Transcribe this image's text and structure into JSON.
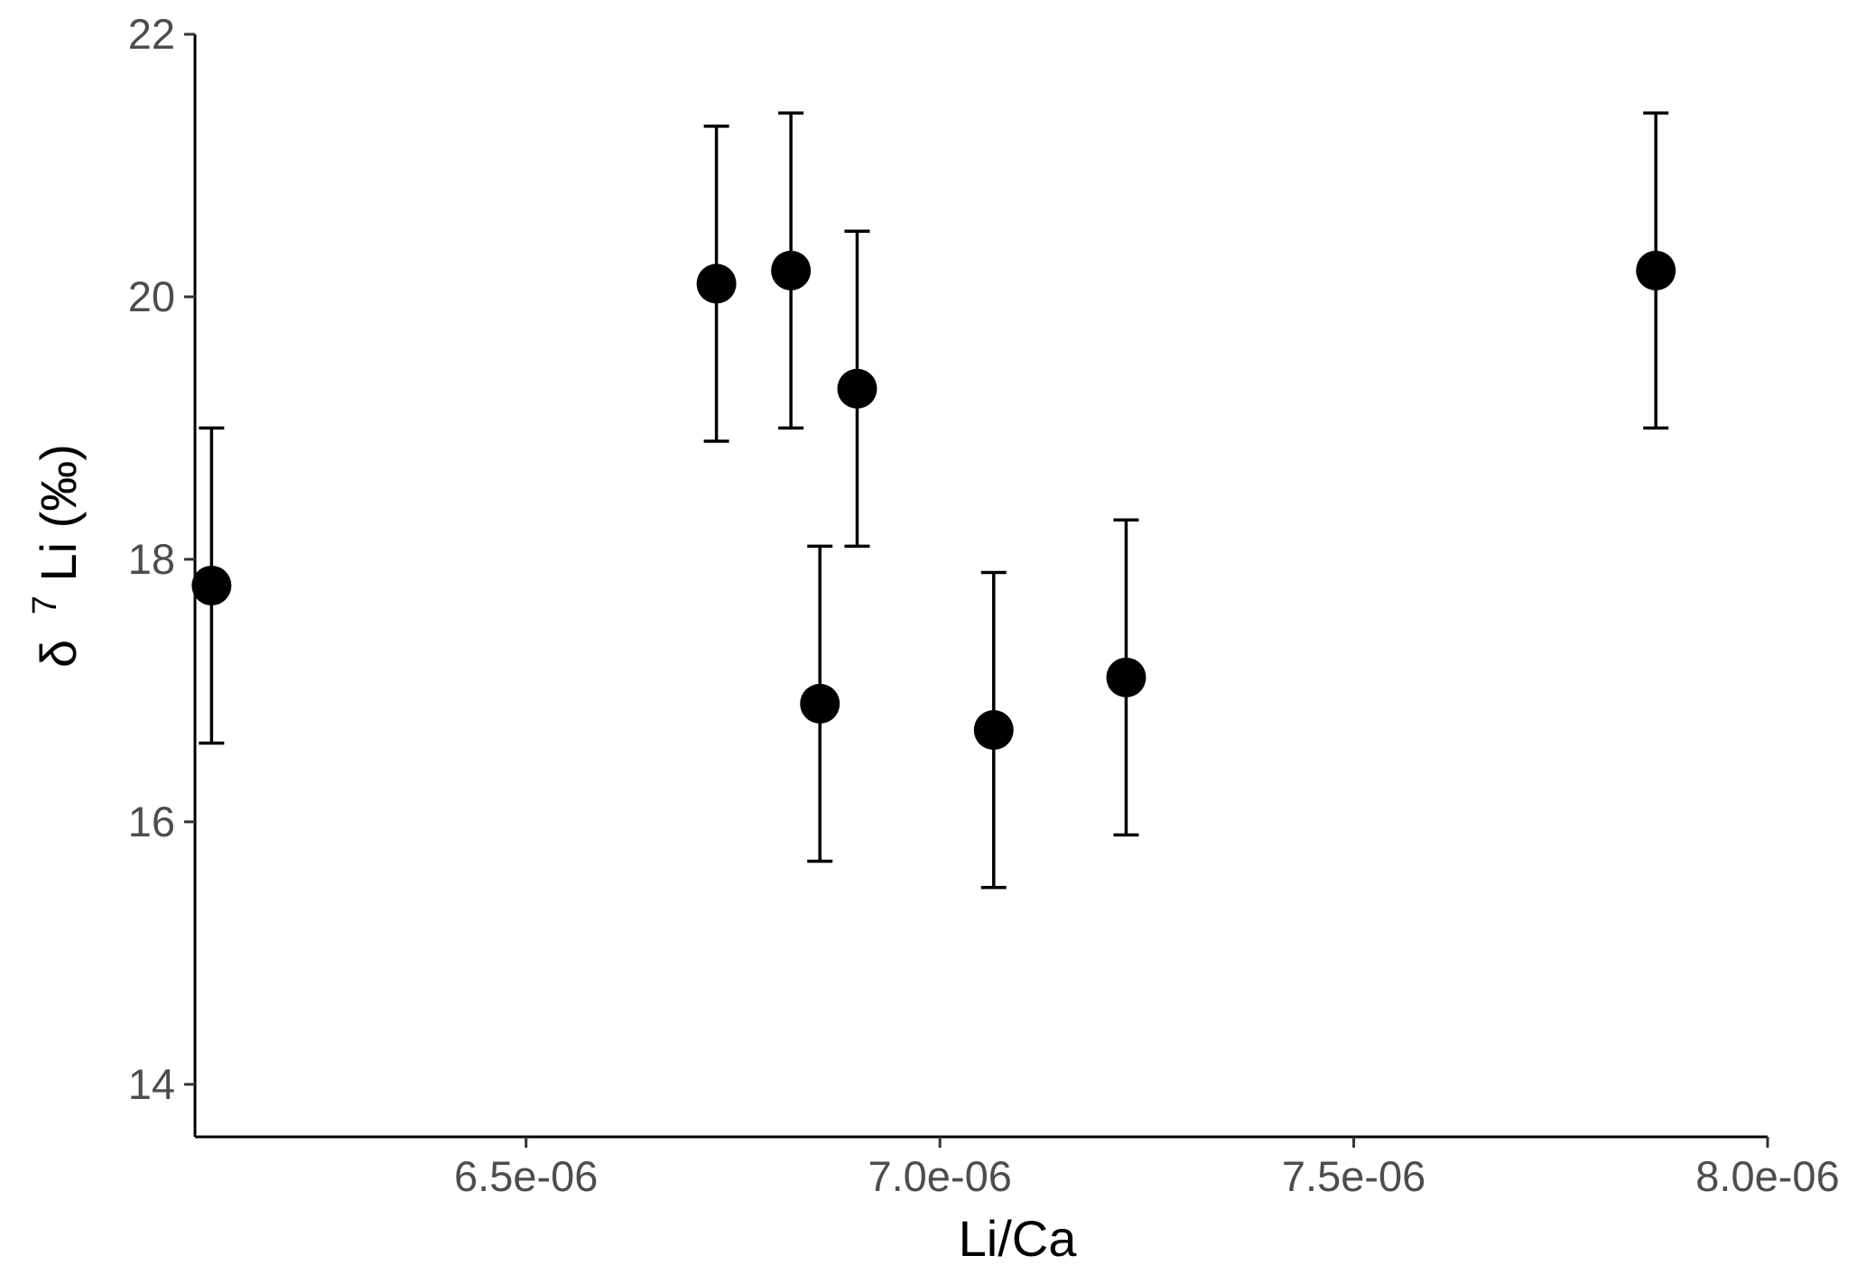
{
  "chart_data": {
    "type": "scatter",
    "title": "",
    "xlabel": "Li/Ca",
    "ylabel": {
      "prefix": "δ",
      "superscript": "7",
      "suffix": "Li (‰)"
    },
    "xlim": [
      6.1e-06,
      8e-06
    ],
    "ylim": [
      13.6,
      22.0
    ],
    "x_ticks": [
      {
        "value": 6.5e-06,
        "label": "6.5e-06"
      },
      {
        "value": 7e-06,
        "label": "7.0e-06"
      },
      {
        "value": 7.5e-06,
        "label": "7.5e-06"
      },
      {
        "value": 8e-06,
        "label": "8.0e-06"
      }
    ],
    "y_ticks": [
      {
        "value": 14,
        "label": "14"
      },
      {
        "value": 16,
        "label": "16"
      },
      {
        "value": 18,
        "label": "18"
      },
      {
        "value": 20,
        "label": "20"
      },
      {
        "value": 22,
        "label": "22"
      }
    ],
    "grid": false,
    "legend": "none",
    "point_color": "#000000",
    "points": [
      {
        "x": 6.12e-06,
        "y": 17.8,
        "ymin": 16.6,
        "ymax": 19.0
      },
      {
        "x": 6.73e-06,
        "y": 20.1,
        "ymin": 18.9,
        "ymax": 21.3
      },
      {
        "x": 6.82e-06,
        "y": 20.2,
        "ymin": 19.0,
        "ymax": 21.4
      },
      {
        "x": 6.855e-06,
        "y": 16.9,
        "ymin": 15.7,
        "ymax": 18.1
      },
      {
        "x": 6.9e-06,
        "y": 19.3,
        "ymin": 18.1,
        "ymax": 20.5
      },
      {
        "x": 7.065e-06,
        "y": 16.7,
        "ymin": 15.5,
        "ymax": 17.9
      },
      {
        "x": 7.225e-06,
        "y": 17.1,
        "ymin": 15.9,
        "ymax": 18.3
      },
      {
        "x": 7.865e-06,
        "y": 20.2,
        "ymin": 19.0,
        "ymax": 21.4
      }
    ]
  }
}
